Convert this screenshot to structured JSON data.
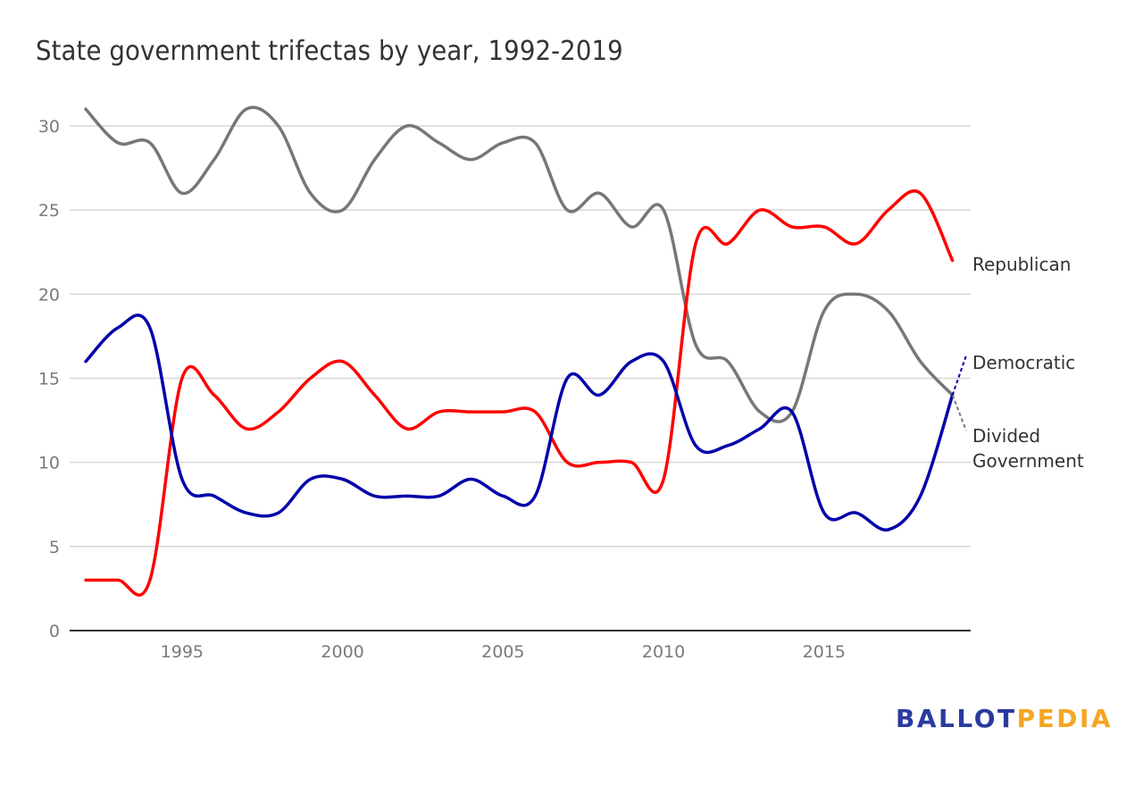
{
  "chart_data": {
    "type": "line",
    "title": "State government trifectas by year, 1992-2019",
    "xlabel": "",
    "ylabel": "",
    "x": [
      1992,
      1993,
      1994,
      1995,
      1996,
      1997,
      1998,
      1999,
      2000,
      2001,
      2002,
      2003,
      2004,
      2005,
      2006,
      2007,
      2008,
      2009,
      2010,
      2011,
      2012,
      2013,
      2014,
      2015,
      2016,
      2017,
      2018,
      2019
    ],
    "xlim": [
      1991.8,
      2019.4
    ],
    "ylim": [
      0,
      32
    ],
    "x_ticks": [
      "1995",
      "2000",
      "2005",
      "2010",
      "2015"
    ],
    "y_ticks": [
      "0",
      "5",
      "10",
      "15",
      "20",
      "25",
      "30"
    ],
    "grid": true,
    "legend": "right (direct line labels)",
    "series": [
      {
        "name": "Republican",
        "color": "#ff0000",
        "values": [
          3,
          3,
          3,
          15,
          14,
          12,
          13,
          15,
          16,
          14,
          12,
          13,
          13,
          13,
          13,
          10,
          10,
          10,
          9,
          23,
          23,
          25,
          24,
          24,
          23,
          25,
          26,
          22
        ]
      },
      {
        "name": "Democratic",
        "color": "#0000aa",
        "values": [
          16,
          18,
          18,
          9,
          8,
          7,
          7,
          9,
          9,
          8,
          8,
          8,
          9,
          8,
          8,
          15,
          14,
          16,
          16,
          11,
          11,
          12,
          13,
          7,
          7,
          6,
          8,
          14
        ]
      },
      {
        "name": "Divided Government",
        "color": "#777777",
        "values": [
          31,
          29,
          29,
          26,
          28,
          31,
          30,
          26,
          25,
          28,
          30,
          29,
          28,
          29,
          29,
          25,
          26,
          24,
          25,
          17,
          16,
          13,
          13,
          19,
          20,
          19,
          16,
          14
        ]
      }
    ]
  },
  "labels": {
    "republican": "Republican",
    "democratic": "Democratic",
    "divided_line1": "Divided",
    "divided_line2": "Government"
  },
  "branding": {
    "logo_part1": "BALLOT",
    "logo_part2": "PEDIA",
    "logo_color1": "#2b3a9f",
    "logo_color2": "#f5a623"
  }
}
